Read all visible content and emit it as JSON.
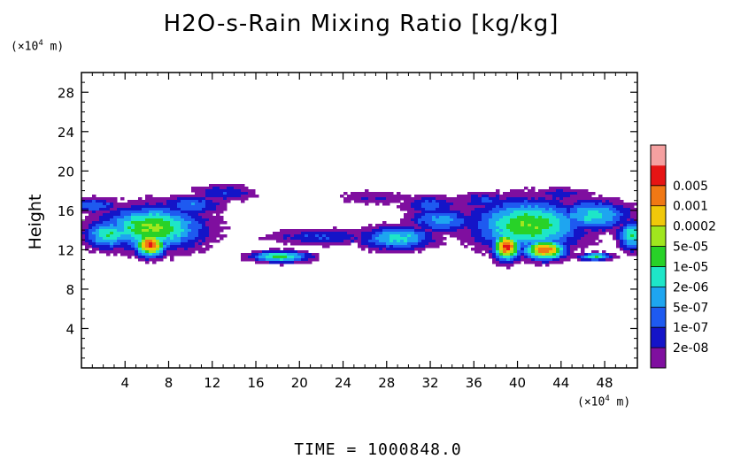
{
  "title": "H2O-s-Rain Mixing Ratio [kg/kg]",
  "y_unit_parts": [
    "(×10",
    "4",
    " m)"
  ],
  "x_unit_parts": [
    "(×10",
    "4",
    " m)"
  ],
  "time_label": "TIME  =  1000848.0",
  "chart_data": {
    "type": "heatmap",
    "title": "H2O-s-Rain Mixing Ratio [kg/kg]",
    "ylabel": "Height",
    "xlabel": "",
    "xlim": [
      0,
      51
    ],
    "ylim": [
      0,
      30
    ],
    "x_ticks": [
      4,
      8,
      12,
      16,
      20,
      24,
      28,
      32,
      36,
      40,
      44,
      48
    ],
    "y_ticks": [
      4,
      8,
      12,
      16,
      20,
      24,
      28
    ],
    "colorbar": {
      "levels": [
        "2e-08",
        "1e-07",
        "5e-07",
        "2e-06",
        "1e-05",
        "5e-05",
        "0.0002",
        "0.001",
        "0.005"
      ],
      "colors": [
        "#7f0f9f",
        "#1414c8",
        "#1e5af0",
        "#1ea5f0",
        "#1ee6c8",
        "#28d228",
        "#a0e61e",
        "#f0c80a",
        "#f07814",
        "#e61414",
        "#f5a0a0"
      ]
    },
    "regions": [
      {
        "x": [
          0,
          13
        ],
        "y": [
          11,
          17.5
        ],
        "level": 1,
        "note": "left cloud envelope"
      },
      {
        "x": [
          1,
          9
        ],
        "y": [
          11.5,
          16
        ],
        "level": 5
      },
      {
        "x": [
          5,
          8
        ],
        "y": [
          11,
          14
        ],
        "level": 8
      },
      {
        "x": [
          15,
          21.5
        ],
        "y": [
          10.5,
          12
        ],
        "level": 5
      },
      {
        "x": [
          22,
          36
        ],
        "y": [
          12,
          17.5
        ],
        "level": 3
      },
      {
        "x": [
          35,
          51
        ],
        "y": [
          11,
          18.5
        ],
        "level": 4
      },
      {
        "x": [
          37,
          43
        ],
        "y": [
          11,
          14
        ],
        "level": 8
      },
      {
        "x": [
          45.5,
          49
        ],
        "y": [
          10.8,
          11.6
        ],
        "level": 5
      }
    ]
  }
}
